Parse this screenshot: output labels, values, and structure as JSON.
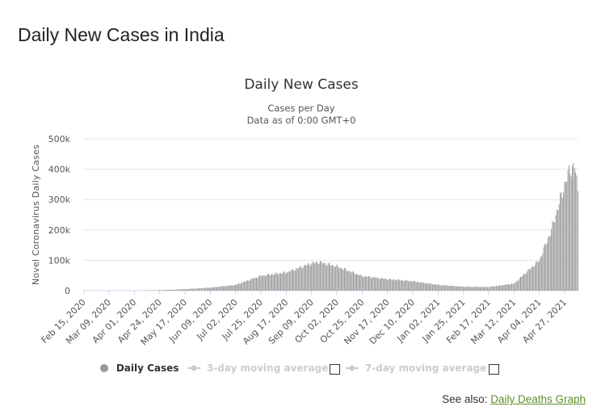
{
  "page": {
    "heading": "Daily New Cases in India",
    "see_also_label": "See also:",
    "see_also_link": "Daily Deaths Graph"
  },
  "legend": {
    "daily_cases": "Daily Cases",
    "avg3": "3-day moving average",
    "avg7": "7-day moving average"
  },
  "colors": {
    "bar": "#999999",
    "grid": "#e6e6e6",
    "link": "#5f8e2a"
  },
  "chart_data": {
    "type": "bar",
    "title": "Daily New Cases",
    "subtitle_lines": [
      "Cases per Day",
      "Data as of 0:00 GMT+0"
    ],
    "ylabel": "Novel Coronavirus Daily Cases",
    "ylim": [
      0,
      500000
    ],
    "y_ticks": [
      0,
      100000,
      200000,
      300000,
      400000,
      500000
    ],
    "y_tick_labels": [
      "0",
      "100k",
      "200k",
      "300k",
      "400k",
      "500k"
    ],
    "x_tick_labels": [
      "Feb 15, 2020",
      "Mar 09, 2020",
      "Apr 01, 2020",
      "Apr 24, 2020",
      "May 17, 2020",
      "Jun 09, 2020",
      "Jul 02, 2020",
      "Jul 25, 2020",
      "Aug 17, 2020",
      "Sep 09, 2020",
      "Oct 02, 2020",
      "Oct 25, 2020",
      "Nov 17, 2020",
      "Dec 10, 2020",
      "Jan 02, 2021",
      "Jan 25, 2021",
      "Feb 17, 2021",
      "Mar 12, 2021",
      "Apr 04, 2021",
      "Apr 27, 2021"
    ],
    "x_start": "Feb 15, 2020",
    "x_end": "May 09, 2021",
    "grid": "horizontal",
    "legend_position": "bottom-center",
    "series": [
      {
        "name": "Daily Cases",
        "key_points": [
          [
            "Feb 15, 2020",
            0
          ],
          [
            "Mar 15, 2020",
            20
          ],
          [
            "Apr 01, 2020",
            300
          ],
          [
            "Apr 24, 2020",
            1500
          ],
          [
            "May 17, 2020",
            5000
          ],
          [
            "Jun 09, 2020",
            10000
          ],
          [
            "Jul 02, 2020",
            19000
          ],
          [
            "Jul 25, 2020",
            49000
          ],
          [
            "Aug 17, 2020",
            60000
          ],
          [
            "Sep 09, 2020",
            90000
          ],
          [
            "Sep 16, 2020",
            94000
          ],
          [
            "Oct 02, 2020",
            80000
          ],
          [
            "Oct 25, 2020",
            48000
          ],
          [
            "Nov 17, 2020",
            38000
          ],
          [
            "Dec 10, 2020",
            31000
          ],
          [
            "Jan 02, 2021",
            19000
          ],
          [
            "Jan 25, 2021",
            13000
          ],
          [
            "Feb 17, 2021",
            12000
          ],
          [
            "Mar 12, 2021",
            23000
          ],
          [
            "Apr 04, 2021",
            100000
          ],
          [
            "Apr 15, 2021",
            200000
          ],
          [
            "Apr 27, 2021",
            350000
          ],
          [
            "May 02, 2021",
            400000
          ],
          [
            "May 06, 2021",
            412000
          ],
          [
            "May 09, 2021",
            330000
          ]
        ]
      }
    ]
  }
}
